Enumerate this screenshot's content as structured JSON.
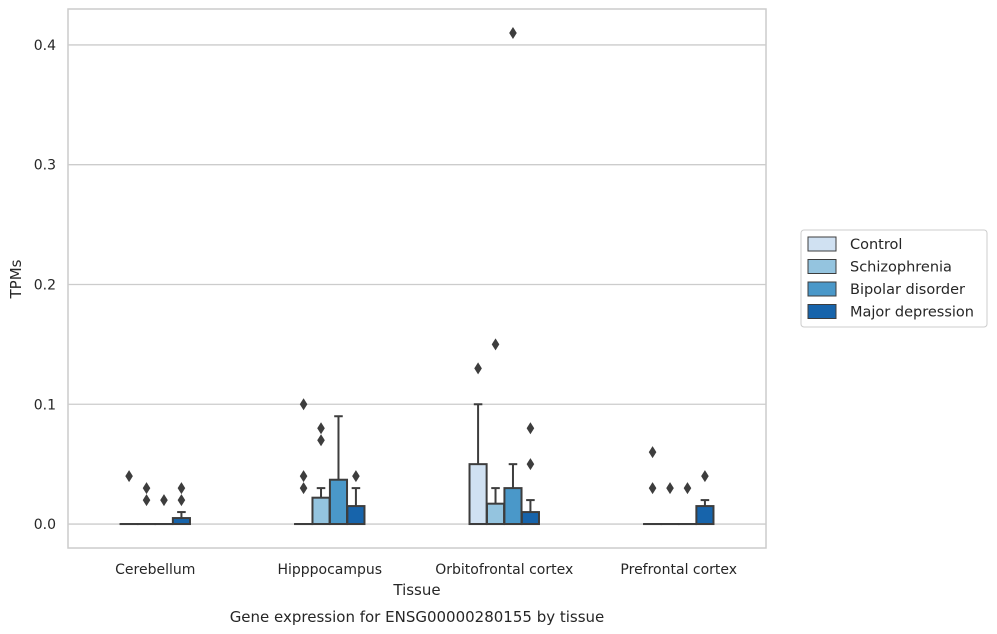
{
  "chart_data": {
    "type": "box",
    "xlabel": "Tissue",
    "ylabel": "TPMs",
    "caption": "Gene expression for ENSG00000280155 by tissue",
    "ylim": [
      -0.02,
      0.43
    ],
    "yticks": [
      0.0,
      0.1,
      0.2,
      0.3,
      0.4
    ],
    "ytick_labels": [
      "0.0",
      "0.1",
      "0.2",
      "0.3",
      "0.4"
    ],
    "grid": "horizontal",
    "legend_position": "right",
    "categories": [
      "Cerebellum",
      "Hipppocampus",
      "Orbitofrontal cortex",
      "Prefrontal cortex"
    ],
    "series": [
      {
        "name": "Control",
        "color": "#d0e1f2",
        "boxes": [
          {
            "q1": 0.0,
            "median": 0.0,
            "q3": 0.0,
            "whisker_low": 0.0,
            "whisker_high": 0.0,
            "outliers": [
              0.04
            ]
          },
          {
            "q1": 0.0,
            "median": 0.0,
            "q3": 0.0,
            "whisker_low": 0.0,
            "whisker_high": 0.0,
            "outliers": [
              0.03,
              0.04,
              0.1
            ]
          },
          {
            "q1": 0.0,
            "median": 0.0,
            "q3": 0.05,
            "whisker_low": 0.0,
            "whisker_high": 0.1,
            "outliers": [
              0.13
            ]
          },
          {
            "q1": 0.0,
            "median": 0.0,
            "q3": 0.0,
            "whisker_low": 0.0,
            "whisker_high": 0.0,
            "outliers": [
              0.03,
              0.06
            ]
          }
        ]
      },
      {
        "name": "Schizophrenia",
        "color": "#94c4df",
        "boxes": [
          {
            "q1": 0.0,
            "median": 0.0,
            "q3": 0.0,
            "whisker_low": 0.0,
            "whisker_high": 0.0,
            "outliers": [
              0.02,
              0.03
            ]
          },
          {
            "q1": 0.0,
            "median": 0.0,
            "q3": 0.022,
            "whisker_low": 0.0,
            "whisker_high": 0.03,
            "outliers": [
              0.07,
              0.08
            ]
          },
          {
            "q1": 0.0,
            "median": 0.0,
            "q3": 0.017,
            "whisker_low": 0.0,
            "whisker_high": 0.03,
            "outliers": [
              0.15
            ]
          },
          {
            "q1": 0.0,
            "median": 0.0,
            "q3": 0.0,
            "whisker_low": 0.0,
            "whisker_high": 0.0,
            "outliers": [
              0.03
            ]
          }
        ]
      },
      {
        "name": "Bipolar disorder",
        "color": "#4a98c9",
        "boxes": [
          {
            "q1": 0.0,
            "median": 0.0,
            "q3": 0.0,
            "whisker_low": 0.0,
            "whisker_high": 0.0,
            "outliers": [
              0.02
            ]
          },
          {
            "q1": 0.0,
            "median": 0.0,
            "q3": 0.037,
            "whisker_low": 0.0,
            "whisker_high": 0.09,
            "outliers": []
          },
          {
            "q1": 0.0,
            "median": 0.0,
            "q3": 0.03,
            "whisker_low": 0.0,
            "whisker_high": 0.05,
            "outliers": [
              0.41
            ]
          },
          {
            "q1": 0.0,
            "median": 0.0,
            "q3": 0.0,
            "whisker_low": 0.0,
            "whisker_high": 0.0,
            "outliers": [
              0.03
            ]
          }
        ]
      },
      {
        "name": "Major depression",
        "color": "#1764ab",
        "boxes": [
          {
            "q1": 0.0,
            "median": 0.0,
            "q3": 0.005,
            "whisker_low": 0.0,
            "whisker_high": 0.01,
            "outliers": [
              0.02,
              0.03
            ]
          },
          {
            "q1": 0.0,
            "median": 0.0,
            "q3": 0.015,
            "whisker_low": 0.0,
            "whisker_high": 0.03,
            "outliers": [
              0.04
            ]
          },
          {
            "q1": 0.0,
            "median": 0.0,
            "q3": 0.01,
            "whisker_low": 0.0,
            "whisker_high": 0.02,
            "outliers": [
              0.05,
              0.08
            ]
          },
          {
            "q1": 0.0,
            "median": 0.0,
            "q3": 0.015,
            "whisker_low": 0.0,
            "whisker_high": 0.02,
            "outliers": [
              0.04
            ]
          }
        ]
      }
    ]
  }
}
